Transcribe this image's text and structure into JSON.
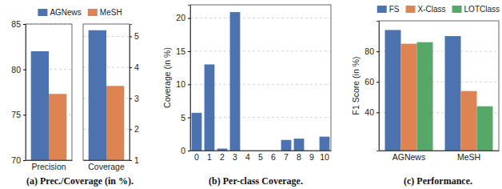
{
  "chart_data": [
    {
      "type": "bar",
      "title": "(a) Prec./Coverage (in %).",
      "categories": [
        "Precision"
      ],
      "series": [
        {
          "name": "AGNews",
          "color": "#4c72b0",
          "values": [
            82
          ]
        },
        {
          "name": "MeSH",
          "color": "#dd8452",
          "values": [
            77.3
          ]
        }
      ],
      "ylim": [
        70,
        85
      ],
      "yticks": [
        70,
        75,
        80,
        85
      ],
      "grid": true,
      "legend": "top"
    },
    {
      "type": "bar",
      "categories": [
        "Coverage"
      ],
      "series": [
        {
          "color": "#4c72b0",
          "values": [
            5.2
          ],
          "axis": "y2"
        },
        {
          "color": "#dd8452",
          "values": [
            3.4
          ],
          "axis": "y2"
        }
      ],
      "y2lim": [
        1,
        5.4
      ],
      "y2ticks": [
        1,
        2,
        3,
        4,
        5
      ],
      "grid": true
    },
    {
      "type": "bar",
      "title": "(b) Per-class Coverage.",
      "y_label": "Coverage (in %)",
      "categories": [
        "0",
        "1",
        "2",
        "3",
        "4",
        "5",
        "6",
        "7",
        "8",
        "9",
        "10"
      ],
      "values": [
        5.7,
        13,
        0.3,
        20.9,
        0,
        0,
        0,
        1.6,
        1.8,
        0,
        2.1
      ],
      "color": "#4c72b0",
      "ylim": [
        0,
        22
      ],
      "yticks": [
        0,
        5,
        10,
        15,
        20
      ],
      "grid": true
    },
    {
      "type": "bar",
      "title": "(c) Performance.",
      "y_label": "F1 Score (in %)",
      "categories": [
        "AGNews",
        "MeSH"
      ],
      "series": [
        {
          "name": "FS",
          "color": "#4c72b0",
          "values": [
            94,
            90
          ]
        },
        {
          "name": "X-Class",
          "color": "#dd8452",
          "values": [
            85,
            54
          ]
        },
        {
          "name": "LOTClass",
          "color": "#55a868",
          "values": [
            86,
            44
          ]
        }
      ],
      "ylim": [
        15,
        100
      ],
      "yticks": [
        40,
        60,
        80
      ],
      "grid": true,
      "legend": "top"
    }
  ]
}
